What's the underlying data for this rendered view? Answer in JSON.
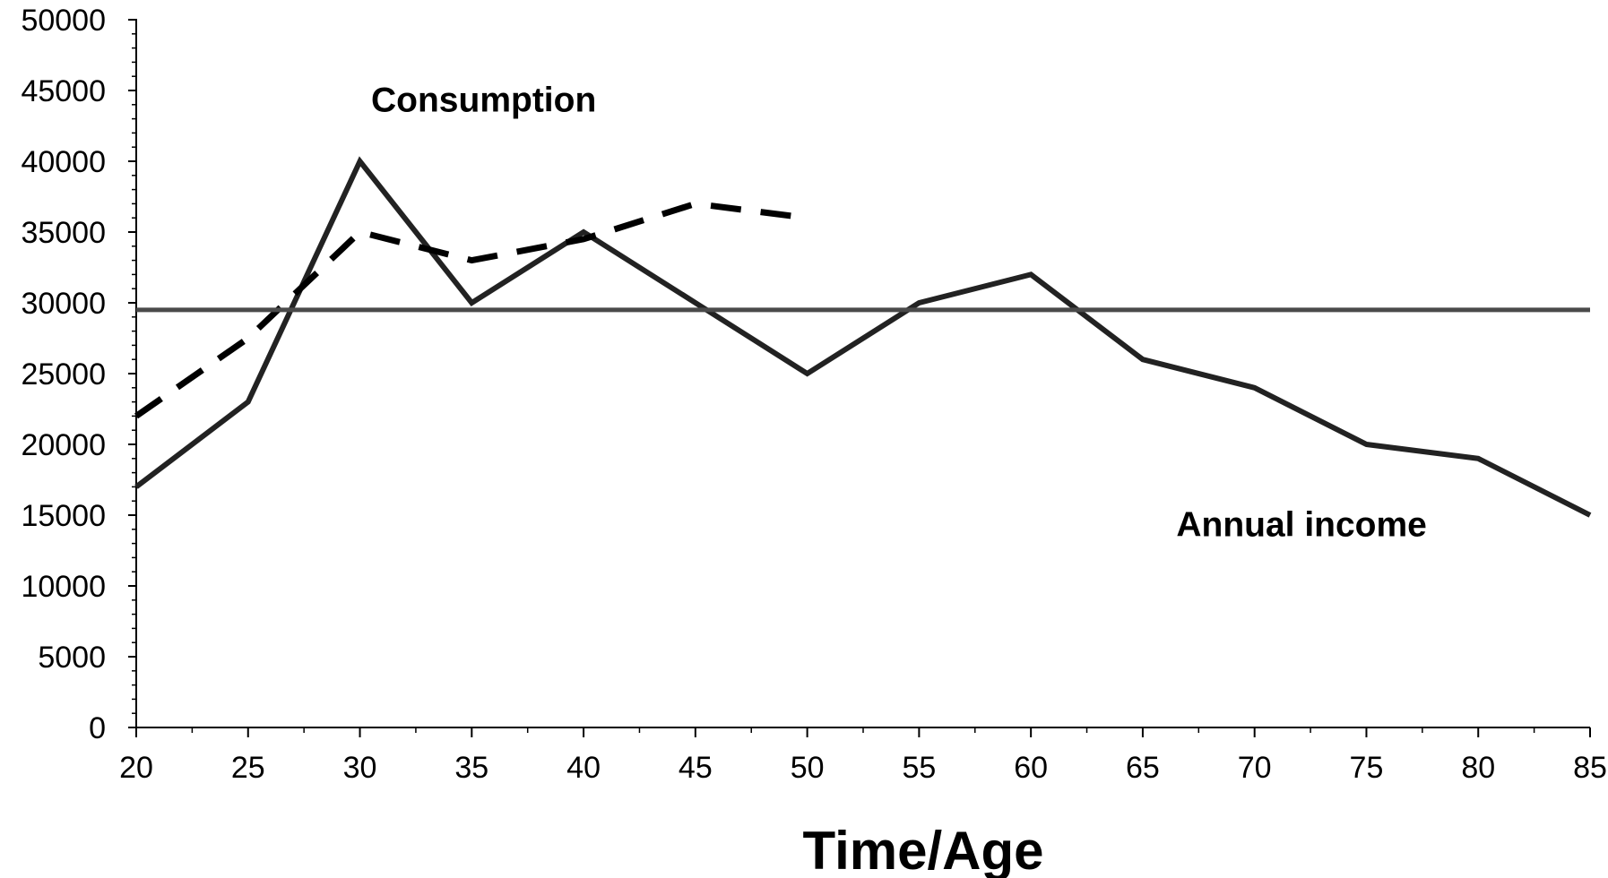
{
  "chart_data": {
    "type": "line",
    "xlabel": "Time/Age",
    "ylabel": "",
    "title": "",
    "xlim": [
      20,
      85
    ],
    "ylim": [
      0,
      50000
    ],
    "x_ticks": [
      "20",
      "25",
      "30",
      "35",
      "40",
      "45",
      "50",
      "55",
      "60",
      "65",
      "70",
      "75",
      "80",
      "85"
    ],
    "y_ticks": [
      "0",
      "5000",
      "10000",
      "15000",
      "20000",
      "25000",
      "30000",
      "35000",
      "40000",
      "45000",
      "50000"
    ],
    "grid": false,
    "legend": "none",
    "annotations": [
      {
        "text": "Consumption",
        "x": 30.5,
        "y": 43500
      },
      {
        "text": "Annual income",
        "x": 66.5,
        "y": 13500
      }
    ],
    "series": [
      {
        "style": "solid",
        "color": "#222222",
        "x": [
          20,
          25,
          30,
          35,
          40,
          45,
          50,
          55,
          60,
          65,
          70,
          75,
          80,
          85
        ],
        "y": [
          17000,
          23000,
          40000,
          30000,
          35000,
          30000,
          25000,
          30000,
          32000,
          26000,
          24000,
          20000,
          19000,
          15000
        ]
      },
      {
        "style": "dashed",
        "color": "#000000",
        "x": [
          20,
          25,
          30,
          35,
          40,
          45,
          50
        ],
        "y": [
          22000,
          27500,
          35000,
          33000,
          34500,
          37000,
          36000
        ]
      },
      {
        "style": "solid",
        "color": "#4a4a4a",
        "x": [
          20,
          85
        ],
        "y": [
          29500,
          29500
        ]
      }
    ]
  }
}
